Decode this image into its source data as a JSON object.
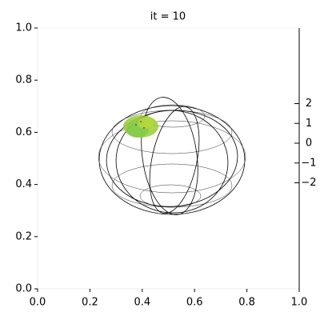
{
  "chart_data": {
    "type": "scatter3d",
    "title": "it = 10",
    "xlim": [
      0,
      1
    ],
    "ylim": [
      0,
      1
    ],
    "xticks": [
      {
        "value": 0,
        "label": "0.0"
      },
      {
        "value": 0.2,
        "label": "0.2"
      },
      {
        "value": 0.4,
        "label": "0.4"
      },
      {
        "value": 0.6,
        "label": "0.6"
      },
      {
        "value": 0.8,
        "label": "0.8"
      },
      {
        "value": 1,
        "label": "1.0"
      }
    ],
    "yticks": [
      {
        "value": 0,
        "label": "0.0"
      },
      {
        "value": 0.2,
        "label": "0.2"
      },
      {
        "value": 0.4,
        "label": "0.4"
      },
      {
        "value": 0.6,
        "label": "0.6"
      },
      {
        "value": 0.8,
        "label": "0.8"
      },
      {
        "value": 1,
        "label": "1.0"
      }
    ],
    "zticks": [
      2,
      1,
      0,
      {
        "value": -1,
        "label": "−1"
      },
      {
        "value": -2,
        "label": "−2"
      }
    ]
  }
}
